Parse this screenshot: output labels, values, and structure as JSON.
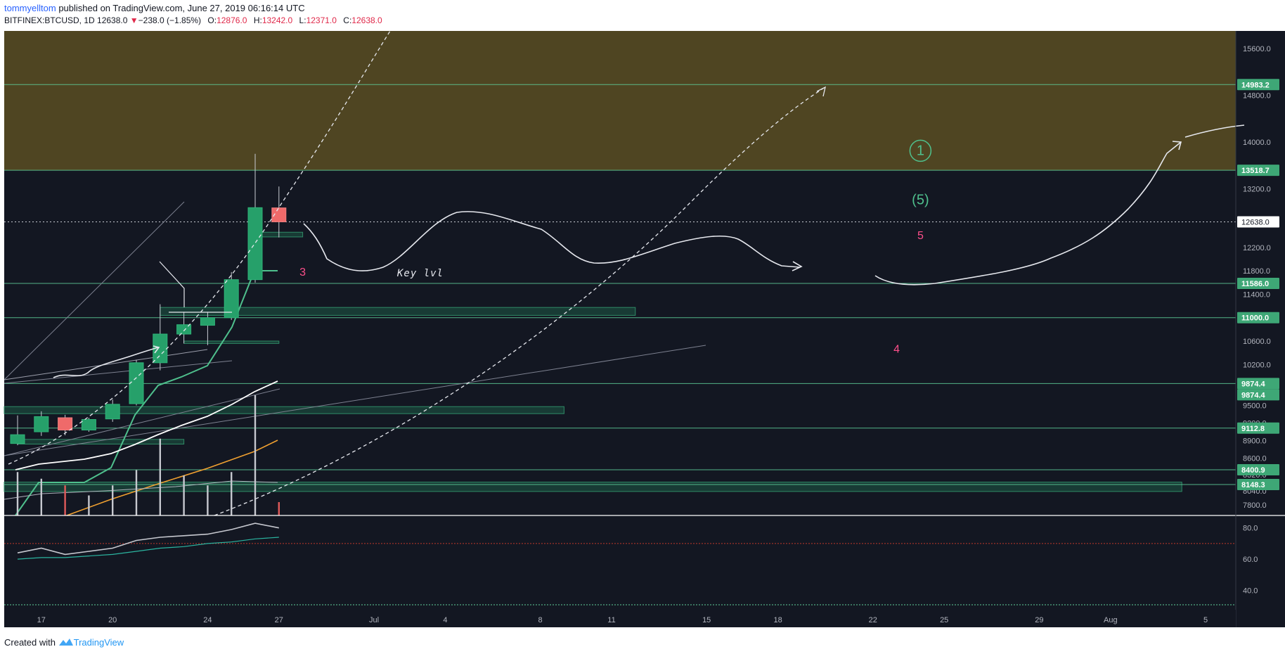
{
  "header": {
    "author": "tommyelltom",
    "published": "published on TradingView.com, June 27, 2019 06:16:14 UTC",
    "symbol": "BITFINEX:BTCUSD, 1D",
    "last": "12638.0",
    "change_arrow": "▼",
    "change": "−238.0 (−1.85%)",
    "open_label": "O:",
    "open": "12876.0",
    "high_label": "H:",
    "high": "13242.0",
    "low_label": "L:",
    "low": "12371.0",
    "close_label": "C:",
    "close": "12638.0"
  },
  "footer": {
    "created_with": "Created with",
    "brand": "TradingView",
    "logo_icon": "tradingview-logo-icon"
  },
  "colors": {
    "background": "#131722",
    "up": "#26a06a",
    "down": "#ef6a6a",
    "zone": "#4f4522",
    "hline": "#5fcf9a",
    "sma_orange": "#f0a030",
    "curve": "#e6e8ee",
    "wave_green": "#4fc08d",
    "wave_pink": "#ff4f8b"
  },
  "chart_data": {
    "type": "candlestick",
    "symbol": "BITFINEX:BTCUSD",
    "interval": "1D",
    "price_scale": [
      "15600.0",
      "14800.0",
      "14000.0",
      "13200.0",
      "12200.0",
      "11800.0",
      "11400.0",
      "10600.0",
      "10200.0",
      "9500.0",
      "9200.0",
      "8900.0",
      "8600.0",
      "8320.0",
      "8040.0",
      "7800.0"
    ],
    "price_tick_values": [
      15600,
      14800,
      14000,
      13200,
      12200,
      11800,
      11400,
      10600,
      10200,
      9500,
      9200,
      8900,
      8600,
      8320,
      8040,
      7800
    ],
    "price_range": [
      7620,
      15900
    ],
    "time_labels": [
      "17",
      "20",
      "24",
      "27",
      "Jul",
      "4",
      "8",
      "11",
      "15",
      "18",
      "22",
      "25",
      "29",
      "Aug",
      "5"
    ],
    "candles": [
      {
        "date": "2019-06-16",
        "o": 8850,
        "h": 9330,
        "l": 8820,
        "c": 9000
      },
      {
        "date": "2019-06-17",
        "o": 9050,
        "h": 9400,
        "l": 8980,
        "c": 9310
      },
      {
        "date": "2019-06-18",
        "o": 9290,
        "h": 9340,
        "l": 8990,
        "c": 9080
      },
      {
        "date": "2019-06-19",
        "o": 9080,
        "h": 9290,
        "l": 9050,
        "c": 9260
      },
      {
        "date": "2019-06-20",
        "o": 9270,
        "h": 9600,
        "l": 9220,
        "c": 9520
      },
      {
        "date": "2019-06-21",
        "o": 9530,
        "h": 10280,
        "l": 9500,
        "c": 10230
      },
      {
        "date": "2019-06-22",
        "o": 10230,
        "h": 11230,
        "l": 10100,
        "c": 10720
      },
      {
        "date": "2019-06-23",
        "o": 10720,
        "h": 11100,
        "l": 10560,
        "c": 10880
      },
      {
        "date": "2019-06-24",
        "o": 10870,
        "h": 11100,
        "l": 10530,
        "c": 11000
      },
      {
        "date": "2019-06-25",
        "o": 11000,
        "h": 11780,
        "l": 10960,
        "c": 11650
      },
      {
        "date": "2019-06-26",
        "o": 11650,
        "h": 13800,
        "l": 11600,
        "c": 12880
      },
      {
        "date": "2019-06-27",
        "o": 12876,
        "h": 13242,
        "l": 12371,
        "c": 12638
      }
    ],
    "horizontal_levels": [
      {
        "value": 14983.2,
        "label": "14983.2"
      },
      {
        "value": 13518.7,
        "label": "13518.7"
      },
      {
        "value": 12638.0,
        "label": "12638.0",
        "type": "last_price"
      },
      {
        "value": 11586.0,
        "label": "11586.0"
      },
      {
        "value": 11000.0,
        "label": "11000.0"
      },
      {
        "value": 9874.4,
        "label": "9874.4"
      },
      {
        "value": 9874.4,
        "label": "9874.4"
      },
      {
        "value": 9112.8,
        "label": "9112.8"
      },
      {
        "value": 8400.9,
        "label": "8400.9"
      },
      {
        "value": 8148.3,
        "label": "8148.3"
      }
    ],
    "resistance_zone": [
      13518.7,
      15900
    ],
    "volume_bars": [
      {
        "date": "2019-06-16",
        "v": 0.65,
        "dir": "up"
      },
      {
        "date": "2019-06-17",
        "v": 0.55,
        "dir": "up"
      },
      {
        "date": "2019-06-18",
        "v": 0.45,
        "dir": "down"
      },
      {
        "date": "2019-06-19",
        "v": 0.3,
        "dir": "up"
      },
      {
        "date": "2019-06-20",
        "v": 0.45,
        "dir": "up"
      },
      {
        "date": "2019-06-21",
        "v": 0.68,
        "dir": "up"
      },
      {
        "date": "2019-06-22",
        "v": 1.15,
        "dir": "up"
      },
      {
        "date": "2019-06-23",
        "v": 0.6,
        "dir": "up"
      },
      {
        "date": "2019-06-24",
        "v": 0.45,
        "dir": "up"
      },
      {
        "date": "2019-06-25",
        "v": 0.65,
        "dir": "up"
      },
      {
        "date": "2019-06-26",
        "v": 1.8,
        "dir": "up"
      },
      {
        "date": "2019-06-27",
        "v": 0.2,
        "dir": "down"
      }
    ],
    "rsi": {
      "scale": [
        "80.0",
        "60.0",
        "40.0"
      ],
      "scale_values": [
        80,
        60,
        40
      ],
      "range": [
        28,
        88
      ],
      "level": 70,
      "values": [
        64,
        67,
        63,
        65,
        67,
        72,
        74,
        75,
        76,
        79,
        83,
        80
      ],
      "signal": [
        60,
        61,
        61,
        62,
        63,
        65,
        67,
        68,
        70,
        71,
        73,
        74
      ]
    },
    "annotations": {
      "key_level": "Key lvl",
      "wave_labels": [
        {
          "text": "1",
          "circled": true,
          "color": "green",
          "date": "2019-07-24",
          "price": 13780
        },
        {
          "text": "(5)",
          "color": "green",
          "date": "2019-07-24",
          "price": 12940
        },
        {
          "text": "5",
          "color": "pink",
          "date": "2019-07-24",
          "price": 12340
        },
        {
          "text": "3",
          "color": "pink",
          "date": "2019-06-28",
          "price": 11720
        },
        {
          "text": "4",
          "color": "pink",
          "date": "2019-07-23",
          "price": 10400
        }
      ]
    }
  }
}
